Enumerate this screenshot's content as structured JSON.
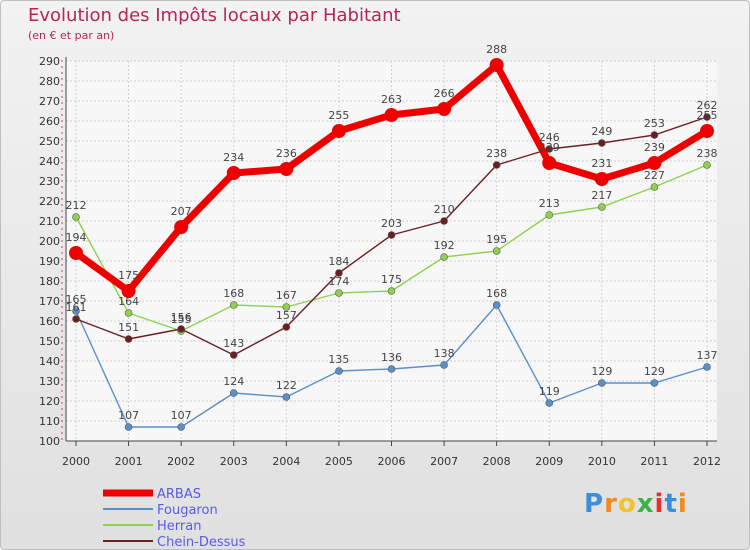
{
  "header": {
    "title": "Evolution des Impôts locaux par Habitant",
    "subtitle": "(en € et par an)"
  },
  "chart_data": {
    "type": "line",
    "title": "Evolution des Impôts locaux par Habitant",
    "subtitle": "(en € et par an)",
    "xlabel": "",
    "ylabel": "",
    "categories": [
      "2000",
      "2001",
      "2002",
      "2003",
      "2004",
      "2005",
      "2006",
      "2007",
      "2008",
      "2009",
      "2010",
      "2011",
      "2012"
    ],
    "ylim": [
      100,
      290
    ],
    "yticks": [
      100,
      110,
      120,
      130,
      140,
      150,
      160,
      170,
      180,
      190,
      200,
      210,
      220,
      230,
      240,
      250,
      260,
      270,
      280,
      290
    ],
    "grid": true,
    "legend_position": "bottom-left",
    "series": [
      {
        "name": "ARBAS",
        "color": "#ee0000",
        "values": [
          194,
          175,
          207,
          234,
          236,
          255,
          263,
          266,
          288,
          239,
          231,
          239,
          255
        ]
      },
      {
        "name": "Fougaron",
        "color": "#5b8fc7",
        "values": [
          165,
          107,
          107,
          124,
          122,
          135,
          136,
          138,
          168,
          119,
          129,
          129,
          137
        ]
      },
      {
        "name": "Herran",
        "color": "#8fd14f",
        "values": [
          212,
          164,
          155,
          168,
          167,
          174,
          175,
          192,
          195,
          213,
          217,
          227,
          238
        ]
      },
      {
        "name": "Chein-Dessus",
        "color": "#6b1f23",
        "values": [
          161,
          151,
          156,
          143,
          157,
          184,
          203,
          210,
          238,
          246,
          249,
          253,
          262
        ]
      }
    ]
  },
  "logo": {
    "text": "Proxiti"
  }
}
